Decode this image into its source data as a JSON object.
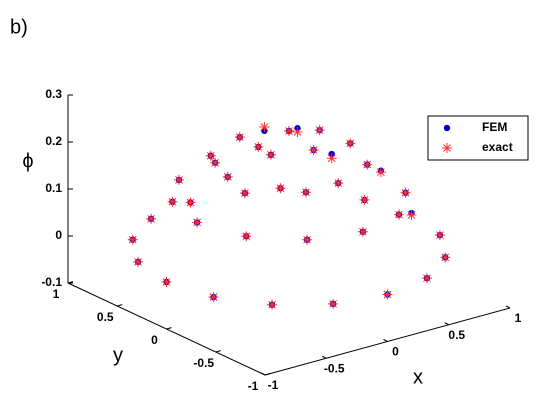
{
  "chart_data": {
    "type": "scatter3d",
    "panel_label": "b)",
    "xlabel": "x",
    "ylabel": "y",
    "zlabel": "ϕ",
    "xlim": [
      -1,
      1
    ],
    "ylim": [
      -1,
      1
    ],
    "zlim": [
      -0.1,
      0.3
    ],
    "xticks": [
      -1,
      -0.5,
      0,
      0.5,
      1
    ],
    "yticks": [
      -1,
      -0.5,
      0,
      0.5,
      1
    ],
    "zticks": [
      -0.1,
      0,
      0.1,
      0.2,
      0.3
    ],
    "legend": "northeast",
    "x": [
      1,
      0.924,
      0.707,
      0.383,
      0,
      -0.383,
      -0.707,
      -0.924,
      -1,
      -0.924,
      -0.707,
      -0.383,
      0,
      0.383,
      0.707,
      0.924,
      0.75,
      0.65,
      0.375,
      0,
      -0.375,
      -0.65,
      -0.75,
      -0.65,
      -0.375,
      0,
      0.375,
      0.65,
      0.5,
      0.354,
      0,
      -0.354,
      -0.5,
      -0.354,
      0,
      0.354,
      0.25,
      0,
      -0.25,
      0,
      0
    ],
    "y": [
      0,
      0.383,
      0.707,
      0.924,
      1,
      0.924,
      0.707,
      0.383,
      0,
      -0.383,
      -0.707,
      -0.924,
      -1,
      -0.924,
      -0.707,
      -0.383,
      0,
      0.375,
      0.65,
      0.75,
      0.65,
      0.375,
      0,
      -0.375,
      -0.65,
      -0.75,
      -0.65,
      -0.375,
      0,
      0.354,
      0.5,
      0.354,
      0,
      -0.354,
      -0.5,
      -0.354,
      0,
      0.25,
      0,
      -0.25,
      0
    ],
    "series": [
      {
        "name": "FEM",
        "color": "#0000cc",
        "marker": "dot",
        "values": [
          0.004,
          0,
          0,
          0,
          0,
          0,
          0,
          0,
          0,
          0,
          0,
          0,
          0,
          0,
          0,
          0,
          0.112,
          0.118,
          0.109,
          0.109,
          0.109,
          0.109,
          0.109,
          0.109,
          0.109,
          0.109,
          0.109,
          0.109,
          0.188,
          0.196,
          0.188,
          0.188,
          0.188,
          0.188,
          0.188,
          0.188,
          0.234,
          0.226,
          0.234,
          0.234,
          0.25
        ]
      },
      {
        "name": "exact",
        "color": "#ff3030",
        "marker": "asterisk",
        "values": [
          0,
          0,
          0,
          0,
          0,
          0,
          0,
          0,
          0,
          0,
          0,
          0,
          0,
          0,
          0,
          0,
          0.109,
          0.109,
          0.109,
          0.109,
          0.109,
          0.109,
          0.109,
          0.109,
          0.109,
          0.109,
          0.109,
          0.109,
          0.188,
          0.188,
          0.188,
          0.188,
          0.188,
          0.188,
          0.188,
          0.188,
          0.234,
          0.234,
          0.234,
          0.234,
          0.25
        ]
      }
    ]
  }
}
